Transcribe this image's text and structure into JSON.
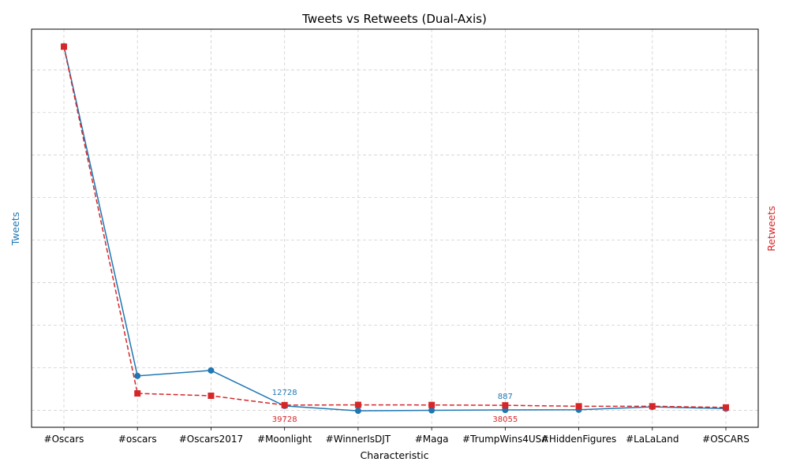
{
  "chart_data": {
    "type": "line",
    "title": "Tweets vs Retweets (Dual-Axis)",
    "xlabel": "Characteristic",
    "ylabel_left": "Tweets",
    "ylabel_right": "Retweets",
    "categories": [
      "#Oscars",
      "#oscars",
      "#Oscars2017",
      "#Moonlight",
      "#WinnerIsDJT",
      "#Maga",
      "#TrumpWins4USA",
      "#HiddenFigures",
      "#LaLaLand",
      "#OSCARS"
    ],
    "series": [
      {
        "name": "Tweets",
        "axis": "left",
        "color": "#1f77b4",
        "line_style": "solid",
        "marker": "circle",
        "values": [
          1070000,
          101000,
          117000,
          12728,
          -1500,
          -200,
          887,
          1500,
          10000,
          5000
        ]
      },
      {
        "name": "Retweets",
        "axis": "right",
        "color": "#d62728",
        "line_style": "dashed",
        "marker": "square",
        "values": [
          3110000,
          140000,
          120000,
          39728,
          42000,
          41000,
          38055,
          30000,
          30000,
          20000
        ]
      }
    ],
    "ylim_left": [
      -50000,
      1120000
    ],
    "ylim_right": [
      -150000,
      3260000
    ],
    "grid": true,
    "grid_style": "dashed",
    "data_labels": [
      {
        "series": 0,
        "index": 3,
        "text": "12728",
        "placement": "above"
      },
      {
        "series": 0,
        "index": 6,
        "text": "887",
        "placement": "above"
      },
      {
        "series": 1,
        "index": 3,
        "text": "39728",
        "placement": "below"
      },
      {
        "series": 1,
        "index": 6,
        "text": "38055",
        "placement": "below"
      }
    ]
  }
}
